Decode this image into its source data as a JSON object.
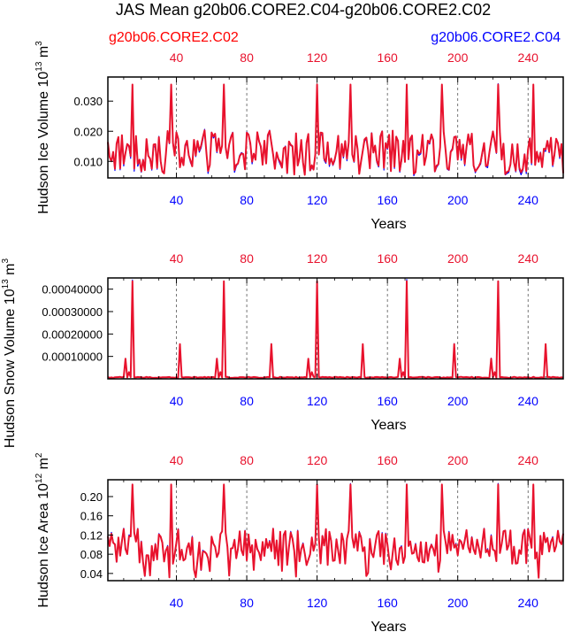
{
  "figure_title": "JAS Mean g20b06.CORE2.C04-g20b06.CORE2.C02",
  "legend": {
    "left": {
      "label": "g20b06.CORE2.C02",
      "color": "#ff0000"
    },
    "right": {
      "label": "g20b06.CORE2.C04",
      "color": "#0000ff"
    }
  },
  "colors": {
    "red_series": "#e8122d",
    "blue_series": "#0000ff",
    "grid": "#555555"
  },
  "chart_data": [
    {
      "type": "line",
      "title": "",
      "ylabel_main": "Hudson Ice Volume 10",
      "ylabel_exp": "13",
      "ylabel_tail": " m",
      "ylabel_unit_exp": "3",
      "xlabel": "Years",
      "xlim": [
        1,
        260
      ],
      "ylim": [
        0.0045,
        0.038
      ],
      "yticks": [
        0.01,
        0.02,
        0.03
      ],
      "ytick_labels": [
        "0.010",
        "0.020",
        "0.030"
      ],
      "xticks": [
        40,
        80,
        120,
        160,
        200,
        240
      ],
      "xtick_labels": [
        "40",
        "80",
        "120",
        "160",
        "200",
        "240"
      ],
      "vlines": [
        40,
        80,
        120,
        160,
        200,
        240
      ],
      "series": [
        {
          "name": "g20b06.CORE2.C04",
          "color": "#0000ff",
          "values": []
        },
        {
          "name": "g20b06.CORE2.C02",
          "color": "#e8122d",
          "values": []
        }
      ],
      "gen": {
        "base": 0.0135,
        "amp": 0.0068,
        "peakVal": 0.0355,
        "dipVal": 0.0055,
        "blueShift": -0.0012
      }
    },
    {
      "type": "line",
      "title": "",
      "ylabel_main": "Hudson Snow Volume 10",
      "ylabel_exp": "13",
      "ylabel_tail": " m",
      "ylabel_unit_exp": "3",
      "xlabel": "Years",
      "xlim": [
        1,
        260
      ],
      "ylim": [
        0,
        0.00045
      ],
      "yticks": [
        0.0001,
        0.0002,
        0.0003,
        0.0004
      ],
      "ytick_labels": [
        "0.00010000",
        "0.00020000",
        "0.00030000",
        "0.00040000"
      ],
      "xticks": [
        40,
        80,
        120,
        160,
        200,
        240
      ],
      "xtick_labels": [
        "40",
        "80",
        "120",
        "160",
        "200",
        "240"
      ],
      "vlines": [
        40,
        80,
        120,
        160,
        200,
        240
      ],
      "series": [
        {
          "name": "g20b06.CORE2.C04",
          "color": "#0000ff",
          "values": []
        },
        {
          "name": "g20b06.CORE2.C02",
          "color": "#e8122d",
          "values": []
        }
      ],
      "gen": {
        "base": 4e-06,
        "amp": 5e-06,
        "peakVal": 0.000435,
        "midVal": 0.000155,
        "smallVal": 9e-05,
        "blueShift": 0
      }
    },
    {
      "type": "line",
      "title": "",
      "ylabel_main": "Hudson Ice Area 10",
      "ylabel_exp": "12",
      "ylabel_tail": " m",
      "ylabel_unit_exp": "2",
      "xlabel": "Years",
      "xlim": [
        1,
        260
      ],
      "ylim": [
        0.025,
        0.235
      ],
      "yticks": [
        0.04,
        0.08,
        0.12,
        0.16,
        0.2
      ],
      "ytick_labels": [
        "0.04",
        "0.08",
        "0.12",
        "0.16",
        "0.20"
      ],
      "xticks": [
        40,
        80,
        120,
        160,
        200,
        240
      ],
      "xtick_labels": [
        "40",
        "80",
        "120",
        "160",
        "200",
        "240"
      ],
      "vlines": [
        40,
        80,
        120,
        160,
        200,
        240
      ],
      "series": [
        {
          "name": "g20b06.CORE2.C04",
          "color": "#0000ff",
          "values": []
        },
        {
          "name": "g20b06.CORE2.C02",
          "color": "#e8122d",
          "values": []
        }
      ],
      "gen": {
        "base": 0.095,
        "amp": 0.038,
        "peakVal": 0.225,
        "dipVal": 0.03,
        "blueShift": 0.004
      }
    }
  ]
}
